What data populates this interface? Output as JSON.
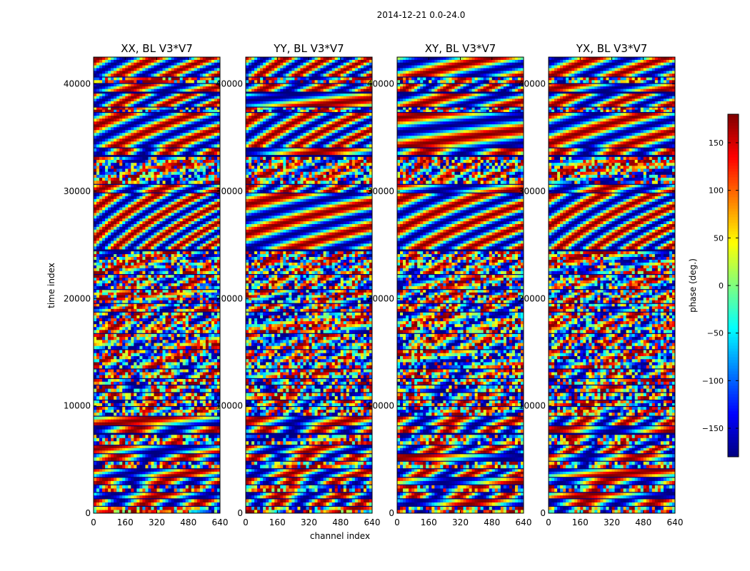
{
  "suptitle": "2014-12-21 0.0-24.0",
  "colors": {
    "frame": "#000000",
    "background": "#ffffff",
    "colormap": [
      "#00007f",
      "#0000ff",
      "#007fff",
      "#00ffff",
      "#7fff7f",
      "#ffff00",
      "#ff7f00",
      "#ff0000",
      "#7f0000"
    ]
  },
  "chart_data": {
    "type": "heatmap",
    "xlabel": "channel index",
    "ylabel": "time index",
    "colorbar_label": "phase (deg.)",
    "xlim": [
      0,
      640
    ],
    "ylim": [
      0,
      42500
    ],
    "xticks": [
      0,
      160,
      320,
      480,
      640
    ],
    "yticks": [
      0,
      10000,
      20000,
      30000,
      40000
    ],
    "colorbar_range": [
      -180,
      180
    ],
    "colorbar_ticks": [
      -150,
      -100,
      -50,
      0,
      50,
      100,
      150
    ],
    "colorbar_tick_labels": [
      "−150",
      "−100",
      "−50",
      "0",
      "50",
      "100",
      "150"
    ],
    "panels": [
      {
        "title": "XX, BL V3*V7"
      },
      {
        "title": "YY, BL V3*V7"
      },
      {
        "title": "XY, BL V3*V7"
      },
      {
        "title": "YX, BL V3*V7"
      }
    ],
    "time_blocks": [
      [
        0,
        600
      ],
      [
        700,
        1300
      ],
      [
        1400,
        1900
      ],
      [
        2000,
        2600
      ],
      [
        2700,
        3300
      ],
      [
        3400,
        4100
      ],
      [
        4200,
        4800
      ],
      [
        4900,
        5500
      ],
      [
        5600,
        6300
      ],
      [
        6400,
        7300
      ],
      [
        7500,
        8100
      ],
      [
        8200,
        9000
      ],
      [
        9100,
        9900
      ],
      [
        10000,
        10500
      ],
      [
        10600,
        11200
      ],
      [
        11300,
        11900
      ],
      [
        12000,
        12500
      ],
      [
        12600,
        13400
      ],
      [
        13500,
        15200
      ],
      [
        15300,
        16700
      ],
      [
        16800,
        18700
      ],
      [
        18800,
        19500
      ],
      [
        19600,
        20800
      ],
      [
        20900,
        22200
      ],
      [
        22300,
        24400
      ],
      [
        24600,
        29800
      ],
      [
        29900,
        30600
      ],
      [
        30700,
        33200
      ],
      [
        33400,
        34000
      ],
      [
        34100,
        37300
      ],
      [
        37400,
        37800
      ],
      [
        37900,
        39100
      ],
      [
        39300,
        40000
      ],
      [
        40100,
        40600
      ],
      [
        40700,
        42500
      ]
    ]
  }
}
